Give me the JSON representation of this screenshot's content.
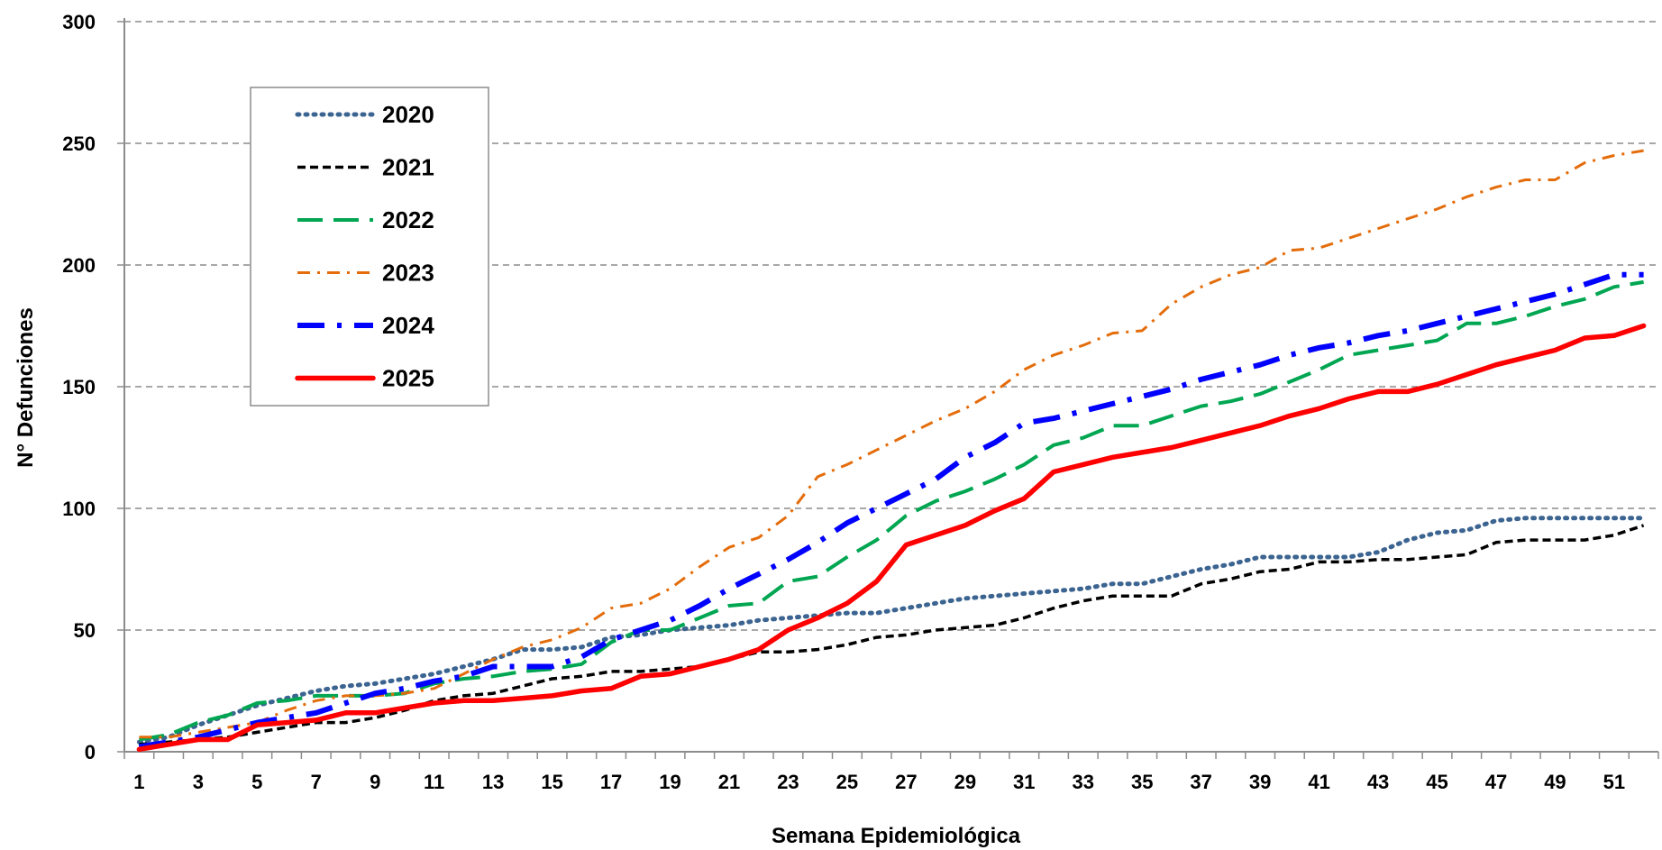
{
  "chart_data": {
    "type": "line",
    "title": "",
    "xlabel": "Semana  Epidemiológica",
    "ylabel": "N°  Defunciones",
    "xlim": [
      1,
      52
    ],
    "ylim": [
      0,
      300
    ],
    "y_ticks": [
      0,
      50,
      100,
      150,
      200,
      250,
      300
    ],
    "x_ticks": [
      1,
      3,
      5,
      7,
      9,
      11,
      13,
      15,
      17,
      19,
      21,
      23,
      25,
      27,
      29,
      31,
      33,
      35,
      37,
      39,
      41,
      43,
      45,
      47,
      49,
      51
    ],
    "grid": "horizontal dashed",
    "legend_position": "top-left",
    "series": [
      {
        "name": "2020",
        "color": "#3C6491",
        "style": "dotted",
        "x": [
          1,
          2,
          3,
          4,
          5,
          6,
          7,
          8,
          9,
          10,
          11,
          12,
          13,
          14,
          15,
          16,
          17,
          18,
          19,
          20,
          21,
          22,
          23,
          24,
          25,
          26,
          27,
          28,
          29,
          30,
          31,
          32,
          33,
          34,
          35,
          36,
          37,
          38,
          39,
          40,
          41,
          42,
          43,
          44,
          45,
          46,
          47,
          48,
          49,
          50,
          51,
          52
        ],
        "values": [
          4,
          6,
          11,
          15,
          19,
          22,
          25,
          27,
          28,
          30,
          32,
          35,
          38,
          42,
          42,
          43,
          47,
          48,
          50,
          51,
          52,
          54,
          55,
          56,
          57,
          57,
          59,
          61,
          63,
          64,
          65,
          66,
          67,
          69,
          69,
          72,
          75,
          77,
          80,
          80,
          80,
          80,
          82,
          87,
          90,
          91,
          95,
          96,
          96,
          96,
          96,
          96
        ]
      },
      {
        "name": "2021",
        "color": "#000000",
        "style": "short-dash",
        "x": [
          1,
          2,
          3,
          4,
          5,
          6,
          7,
          8,
          9,
          10,
          11,
          12,
          13,
          14,
          15,
          16,
          17,
          18,
          19,
          20,
          21,
          22,
          23,
          24,
          25,
          26,
          27,
          28,
          29,
          30,
          31,
          32,
          33,
          34,
          35,
          36,
          37,
          38,
          39,
          40,
          41,
          42,
          43,
          44,
          45,
          46,
          47,
          48,
          49,
          50,
          51,
          52
        ],
        "values": [
          3,
          4,
          5,
          6,
          8,
          10,
          12,
          12,
          14,
          17,
          21,
          23,
          24,
          27,
          30,
          31,
          33,
          33,
          34,
          35,
          38,
          41,
          41,
          42,
          44,
          47,
          48,
          50,
          51,
          52,
          55,
          59,
          62,
          64,
          64,
          64,
          69,
          71,
          74,
          75,
          78,
          78,
          79,
          79,
          80,
          81,
          86,
          87,
          87,
          87,
          89,
          93
        ]
      },
      {
        "name": "2022",
        "color": "#00A651",
        "style": "long-dash",
        "x": [
          1,
          2,
          3,
          4,
          5,
          6,
          7,
          8,
          9,
          10,
          11,
          12,
          13,
          14,
          15,
          16,
          17,
          18,
          19,
          20,
          21,
          22,
          23,
          24,
          25,
          26,
          27,
          28,
          29,
          30,
          31,
          32,
          33,
          34,
          35,
          36,
          37,
          38,
          39,
          40,
          41,
          42,
          43,
          44,
          45,
          46,
          47,
          48,
          49,
          50,
          51,
          52
        ],
        "values": [
          5,
          7,
          12,
          15,
          20,
          21,
          23,
          23,
          23,
          24,
          28,
          30,
          31,
          33,
          34,
          36,
          45,
          50,
          50,
          55,
          60,
          61,
          70,
          72,
          80,
          87,
          97,
          103,
          107,
          112,
          118,
          126,
          129,
          134,
          134,
          138,
          142,
          144,
          147,
          152,
          157,
          163,
          165,
          167,
          169,
          176,
          176,
          179,
          183,
          186,
          191,
          193
        ]
      },
      {
        "name": "2023",
        "color": "#E46C0A",
        "style": "dash-dot",
        "x": [
          1,
          2,
          3,
          4,
          5,
          6,
          7,
          8,
          9,
          10,
          11,
          12,
          13,
          14,
          15,
          16,
          17,
          18,
          19,
          20,
          21,
          22,
          23,
          24,
          25,
          26,
          27,
          28,
          29,
          30,
          31,
          32,
          33,
          34,
          35,
          36,
          37,
          38,
          39,
          40,
          41,
          42,
          43,
          44,
          45,
          46,
          47,
          48,
          49,
          50,
          51,
          52
        ],
        "values": [
          6,
          6,
          8,
          10,
          12,
          17,
          21,
          23,
          23,
          24,
          26,
          32,
          38,
          43,
          46,
          51,
          59,
          61,
          67,
          76,
          84,
          88,
          97,
          113,
          118,
          124,
          130,
          136,
          141,
          148,
          157,
          163,
          167,
          172,
          173,
          184,
          191,
          196,
          199,
          206,
          207,
          211,
          215,
          219,
          223,
          228,
          232,
          235,
          235,
          242,
          245,
          247
        ]
      },
      {
        "name": "2024",
        "color": "#0000FF",
        "style": "long-dash-dot",
        "x": [
          1,
          2,
          3,
          4,
          5,
          6,
          7,
          8,
          9,
          10,
          11,
          12,
          13,
          14,
          15,
          16,
          17,
          18,
          19,
          20,
          21,
          22,
          23,
          24,
          25,
          26,
          27,
          28,
          29,
          30,
          31,
          32,
          33,
          34,
          35,
          36,
          37,
          38,
          39,
          40,
          41,
          42,
          43,
          44,
          45,
          46,
          47,
          48,
          49,
          50,
          51,
          52
        ],
        "values": [
          2,
          4,
          6,
          9,
          12,
          14,
          16,
          20,
          24,
          26,
          29,
          31,
          35,
          35,
          35,
          39,
          46,
          50,
          54,
          60,
          67,
          73,
          79,
          86,
          94,
          100,
          106,
          112,
          121,
          127,
          135,
          137,
          140,
          143,
          146,
          149,
          153,
          156,
          159,
          163,
          166,
          168,
          171,
          173,
          176,
          179,
          182,
          185,
          188,
          192,
          196,
          196
        ]
      },
      {
        "name": "2025",
        "color": "#FF0000",
        "style": "solid",
        "x": [
          1,
          2,
          3,
          4,
          5,
          6,
          7,
          8,
          9,
          10,
          11,
          12,
          13,
          14,
          15,
          16,
          17,
          18,
          19,
          20,
          21,
          22,
          23,
          24,
          25,
          26,
          27,
          28,
          29,
          30,
          31,
          32,
          33,
          34,
          35,
          36,
          37,
          38,
          39,
          40,
          41,
          42,
          43,
          44,
          45,
          46,
          47,
          48,
          49,
          50,
          51,
          52
        ],
        "values": [
          1,
          3,
          5,
          5,
          11,
          12,
          13,
          16,
          16,
          18,
          20,
          21,
          21,
          22,
          23,
          25,
          26,
          31,
          32,
          35,
          38,
          42,
          50,
          55,
          61,
          70,
          85,
          89,
          93,
          99,
          104,
          115,
          118,
          121,
          123,
          125,
          128,
          131,
          134,
          138,
          141,
          145,
          148,
          148,
          151,
          155,
          159,
          162,
          165,
          170,
          171,
          175
        ]
      }
    ]
  }
}
